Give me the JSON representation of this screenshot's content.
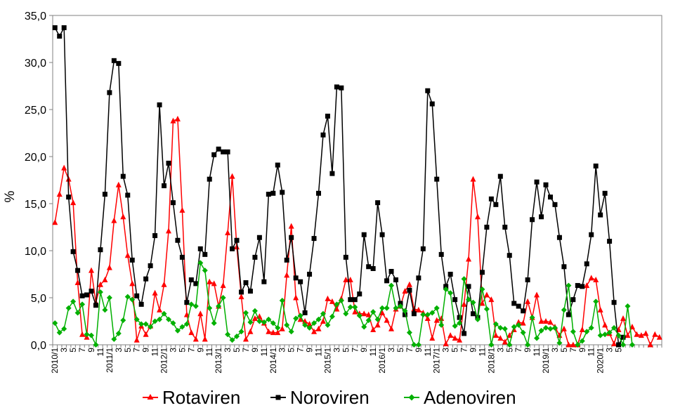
{
  "chart_data": {
    "type": "line",
    "title": "",
    "xlabel": "",
    "ylabel": "%",
    "ylim": [
      0,
      35
    ],
    "yticks": [
      "0,0",
      "5,0",
      "10,0",
      "15,0",
      "20,0",
      "25,0",
      "30,0",
      "35,0"
    ],
    "x_tick_labels": [
      "2010/1",
      "3",
      "5",
      "7",
      "9",
      "11",
      "2011/1",
      "3",
      "5",
      "7",
      "9",
      "11",
      "2012/1",
      "3",
      "5",
      "7",
      "9",
      "11",
      "2013/1",
      "3",
      "5",
      "7",
      "9",
      "11",
      "2014/1",
      "3",
      "5",
      "7",
      "9",
      "11",
      "2015/1",
      "3",
      "5",
      "7",
      "9",
      "11",
      "2016/1",
      "3",
      "5",
      "7",
      "9",
      "11",
      "2017/1",
      "3",
      "5",
      "7",
      "9",
      "11",
      "2018/1",
      "3",
      "5",
      "7",
      "9",
      "11",
      "2019/1",
      "3",
      "5",
      "7",
      "9",
      "11",
      "2020/1",
      "3",
      "5"
    ],
    "series": [
      {
        "name": "Rotaviren",
        "color": "#ff0000",
        "marker": "triangle",
        "values": [
          13.0,
          16.0,
          18.8,
          17.6,
          15.1,
          6.6,
          1.1,
          0.8,
          7.9,
          4.5,
          6.4,
          6.9,
          8.2,
          13.2,
          17.0,
          13.6,
          9.5,
          6.5,
          0.5,
          2.0,
          1.1,
          2.0,
          5.5,
          3.7,
          6.4,
          12.1,
          23.8,
          24.0,
          14.3,
          3.2,
          1.3,
          0.6,
          3.3,
          0.6,
          6.7,
          6.5,
          4.1,
          6.3,
          11.9,
          17.9,
          10.4,
          5.1,
          0.6,
          1.4,
          2.8,
          3.0,
          2.3,
          1.4,
          1.3,
          1.3,
          1.7,
          7.4,
          12.6,
          5.0,
          2.7,
          2.5,
          2.2,
          1.4,
          1.7,
          2.5,
          4.9,
          4.6,
          3.8,
          4.9,
          6.9,
          6.9,
          3.5,
          3.3,
          3.3,
          3.2,
          1.6,
          2.1,
          3.4,
          2.6,
          1.7,
          3.8,
          4.1,
          5.7,
          6.4,
          3.8,
          3.7,
          3.4,
          2.8,
          0.7,
          2.6,
          2.8,
          0.1,
          1.0,
          0.7,
          0.5,
          4.3,
          9.1,
          17.6,
          13.6,
          4.4,
          5.3,
          4.8,
          1.0,
          0.7,
          0.3,
          1.0,
          1.6,
          2.4,
          2.3,
          4.6,
          2.9,
          5.3,
          2.5,
          2.5,
          2.4,
          1.9,
          1.0,
          1.7,
          0.0,
          0.0,
          0.0,
          1.6,
          6.3,
          7.1,
          6.9,
          3.7,
          2.1,
          1.2,
          0.1,
          1.6,
          2.8,
          1.0,
          1.9,
          1.1,
          1.0,
          1.2,
          0.0,
          1.1,
          0.8
        ]
      },
      {
        "name": "Noroviren",
        "color": "#000000",
        "marker": "square",
        "values": [
          33.7,
          32.8,
          33.7,
          15.7,
          9.9,
          7.9,
          5.2,
          5.3,
          5.7,
          4.2,
          10.1,
          16.0,
          26.8,
          30.2,
          29.9,
          17.9,
          15.9,
          9.0,
          5.2,
          4.3,
          7.0,
          8.4,
          11.6,
          25.5,
          16.9,
          19.3,
          15.1,
          11.1,
          9.3,
          4.5,
          6.9,
          6.5,
          10.2,
          9.6,
          17.6,
          20.2,
          20.8,
          20.5,
          20.5,
          10.2,
          11.1,
          5.6,
          6.6,
          5.7,
          9.3,
          11.4,
          6.7,
          16.0,
          16.1,
          19.1,
          16.2,
          9.0,
          11.4,
          7.1,
          6.7,
          3.4,
          7.5,
          11.3,
          16.1,
          22.3,
          24.3,
          18.2,
          27.4,
          27.3,
          9.3,
          4.8,
          4.8,
          5.4,
          11.7,
          8.3,
          8.1,
          15.1,
          11.7,
          6.8,
          7.8,
          6.9,
          4.4,
          3.2,
          5.8,
          3.3,
          7.1,
          10.2,
          27.0,
          25.6,
          17.6,
          9.6,
          6.2,
          7.5,
          4.8,
          2.9,
          1.2,
          6.2,
          3.3,
          2.9,
          7.7,
          12.5,
          15.5,
          14.9,
          17.9,
          12.5,
          9.5,
          4.4,
          4.1,
          3.6,
          6.9,
          13.3,
          17.3,
          13.6,
          17.0,
          15.7,
          14.9,
          11.4,
          8.3,
          3.2,
          4.8,
          6.3,
          6.2,
          8.6,
          11.7,
          19.0,
          13.8,
          16.1,
          11.0,
          4.5,
          0.0,
          0.8
        ]
      },
      {
        "name": "Adenoviren",
        "color": "#00b000",
        "marker": "diamond",
        "values": [
          2.3,
          1.3,
          1.7,
          3.9,
          4.6,
          3.4,
          4.3,
          1.1,
          1.0,
          0.0,
          5.6,
          3.7,
          5.0,
          0.6,
          1.2,
          2.6,
          5.1,
          4.8,
          2.7,
          2.2,
          2.2,
          1.9,
          2.5,
          2.7,
          3.3,
          2.7,
          2.3,
          1.5,
          1.9,
          2.2,
          4.3,
          4.1,
          8.7,
          7.9,
          3.9,
          2.3,
          4.1,
          5.0,
          1.1,
          0.5,
          0.9,
          1.4,
          3.4,
          2.4,
          3.6,
          2.5,
          2.4,
          2.7,
          2.3,
          1.8,
          4.7,
          2.1,
          1.4,
          2.8,
          3.1,
          2.1,
          1.8,
          2.3,
          2.7,
          3.3,
          2.1,
          3.0,
          4.3,
          4.7,
          3.3,
          4.0,
          4.0,
          3.1,
          1.9,
          2.6,
          3.5,
          2.7,
          3.9,
          3.9,
          6.3,
          3.9,
          4.1,
          3.6,
          1.3,
          0.0,
          0.0,
          3.2,
          3.2,
          3.4,
          3.9,
          2.1,
          5.9,
          5.5,
          2.0,
          2.3,
          7.0,
          4.8,
          4.5,
          2.7,
          5.9,
          3.8,
          0.0,
          2.2,
          1.8,
          1.7,
          0.0,
          1.9,
          2.1,
          1.3,
          0.0,
          2.9,
          0.7,
          1.5,
          1.8,
          1.7,
          1.8,
          0.2,
          3.7,
          6.3,
          1.4,
          0.0,
          0.4,
          1.4,
          1.8,
          4.6,
          1.0,
          1.1,
          1.3,
          1.8,
          1.0,
          0.0,
          4.1,
          0.0
        ]
      }
    ],
    "legend_position": "bottom",
    "grid": false
  }
}
